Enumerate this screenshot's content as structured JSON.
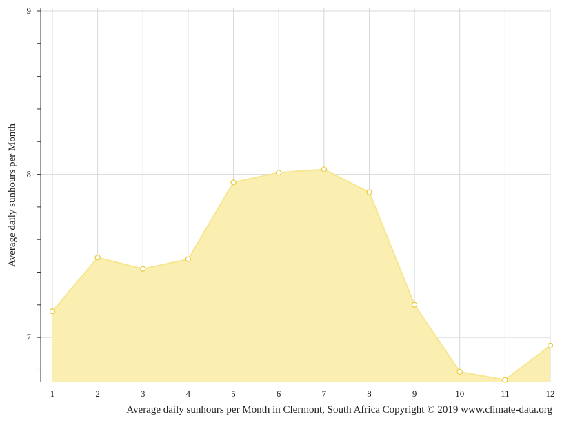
{
  "chart_data": {
    "type": "area",
    "title": "",
    "xlabel": "Average daily sunhours per Month in Clermont, South Africa Copyright © 2019 www.climate-data.org",
    "ylabel": "Average daily sunhours per Month",
    "x": [
      1,
      2,
      3,
      4,
      5,
      6,
      7,
      8,
      9,
      10,
      11,
      12
    ],
    "x_tick_labels": [
      "1",
      "2",
      "3",
      "4",
      "5",
      "6",
      "7",
      "8",
      "9",
      "10",
      "11",
      "12"
    ],
    "y_tick_labels": [
      "9",
      "8",
      "7"
    ],
    "series": [
      {
        "values": [
          7.16,
          7.49,
          7.42,
          7.48,
          7.95,
          8.01,
          8.03,
          7.89,
          7.2,
          6.79,
          6.74,
          6.95
        ]
      }
    ],
    "xlim": [
      1,
      12
    ],
    "ylim": [
      6.73,
      9.0
    ],
    "grid": true,
    "colors": {
      "fill": "#faeeb0",
      "line": "#f7e690",
      "marker_stroke": "#e8c93a",
      "grid": "#d8d8d8",
      "axis": "#333333"
    }
  }
}
